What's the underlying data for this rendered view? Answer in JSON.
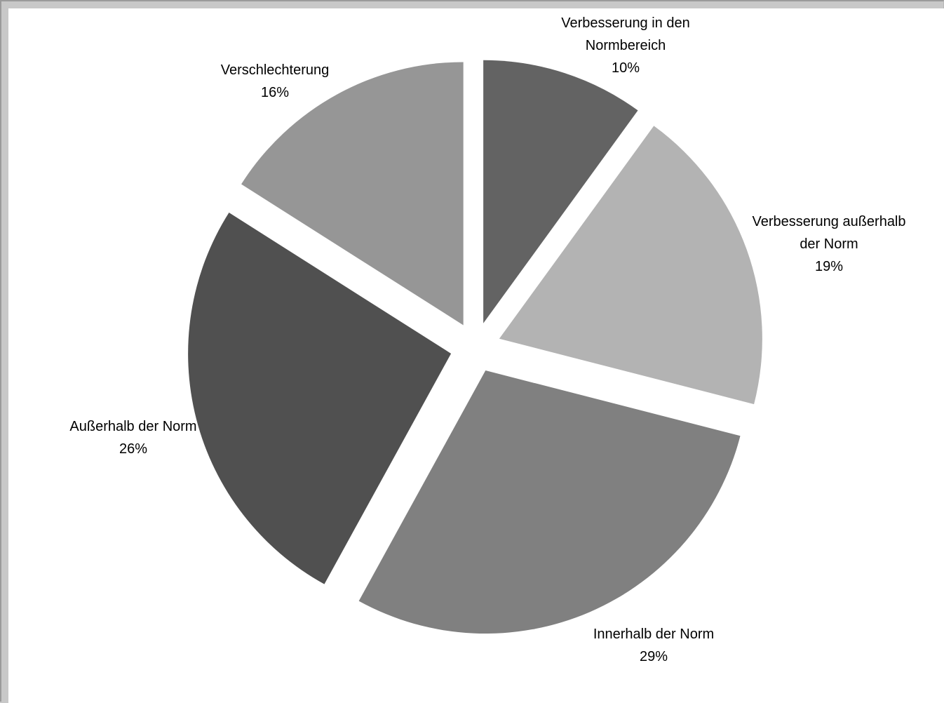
{
  "chart_data": {
    "type": "pie",
    "exploded": true,
    "title": "",
    "slices": [
      {
        "label_lines": [
          "Verbesserung in den",
          "Normbereich"
        ],
        "value": 10,
        "value_label": "10%",
        "color": "#636363"
      },
      {
        "label_lines": [
          "Verbesserung außerhalb",
          "der Norm"
        ],
        "value": 19,
        "value_label": "19%",
        "color": "#b3b3b3"
      },
      {
        "label_lines": [
          "Innerhalb der Norm"
        ],
        "value": 29,
        "value_label": "29%",
        "color": "#808080"
      },
      {
        "label_lines": [
          "Außerhalb der Norm"
        ],
        "value": 26,
        "value_label": "26%",
        "color": "#505050"
      },
      {
        "label_lines": [
          "Verschlechterung"
        ],
        "value": 16,
        "value_label": "16%",
        "color": "#969696"
      }
    ]
  }
}
